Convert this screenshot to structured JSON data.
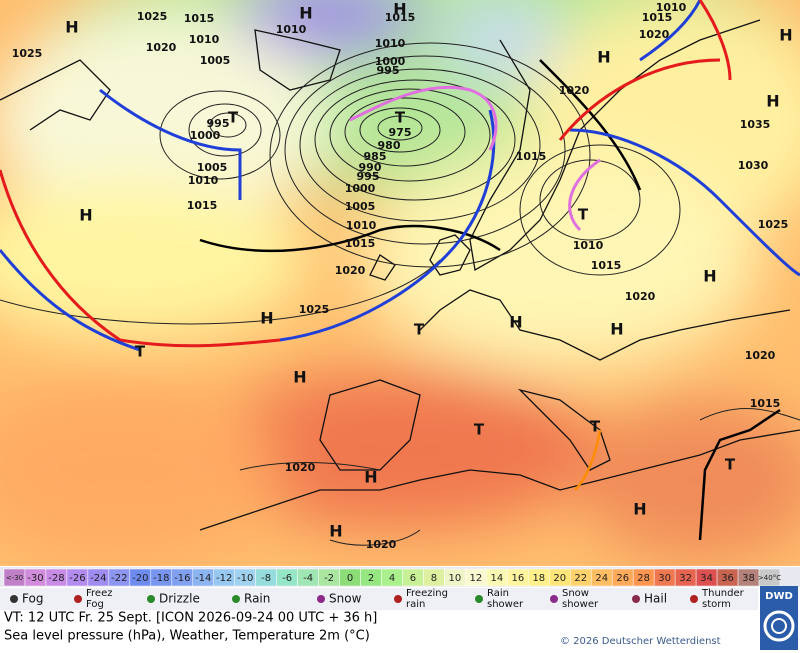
{
  "map": {
    "labels": [
      "H",
      "H",
      "H",
      "H",
      "H",
      "H",
      "H",
      "H",
      "H",
      "H",
      "H",
      "H",
      "H",
      "H",
      "H",
      "T",
      "T",
      "T",
      "T",
      "T",
      "T",
      "T",
      "T",
      "1025",
      "1015",
      "1010",
      "1015",
      "1020",
      "1010",
      "1005",
      "1025",
      "995",
      "1000",
      "1005",
      "1010",
      "1015",
      "975",
      "980",
      "985",
      "990",
      "995",
      "1000",
      "1005",
      "1010",
      "1015",
      "1020",
      "1025",
      "1010",
      "1000",
      "995",
      "1010",
      "1015",
      "1020",
      "1020",
      "1035",
      "1030",
      "1025",
      "1015",
      "1010",
      "1015",
      "1020",
      "1020",
      "1015",
      "1020",
      "1020"
    ]
  },
  "scale": {
    "below": "<-30",
    "values": [
      -30,
      -28,
      -26,
      -24,
      -22,
      -20,
      -18,
      -16,
      -14,
      -12,
      -10,
      -8,
      -6,
      -4,
      -2,
      0,
      2,
      4,
      6,
      8,
      10,
      12,
      14,
      16,
      18,
      20,
      22,
      24,
      26,
      28,
      30,
      32,
      34,
      36,
      38
    ],
    "above": ">40°C",
    "colors": [
      "#c080c8",
      "#d28cdc",
      "#c88ce6",
      "#b48cf0",
      "#a08cf0",
      "#8c96f0",
      "#6e8cf0",
      "#7896f0",
      "#82a0f0",
      "#8cb4f0",
      "#96c8f0",
      "#a0d2f0",
      "#96dcdc",
      "#96e6c8",
      "#a0e6b4",
      "#aae6a0",
      "#8cdc78",
      "#96e682",
      "#aaf08c",
      "#c8f096",
      "#dcf0a0",
      "#f0f5c8",
      "#fafad2",
      "#fafab4",
      "#fff5a0",
      "#fff08c",
      "#ffe678",
      "#ffd26e",
      "#ffbe64",
      "#ffaa5a",
      "#ff9650",
      "#f07850",
      "#e66450",
      "#dc5050",
      "#c86450",
      "#b4827a",
      "#c8c8c8"
    ]
  },
  "legend": [
    [
      "Fog"
    ],
    [
      "Freez",
      "Fog"
    ],
    [
      "Drizzle"
    ],
    [
      "Rain"
    ],
    [
      "Snow"
    ],
    [
      "Freezing",
      "rain"
    ],
    [
      "Rain",
      "shower"
    ],
    [
      "Snow",
      "shower"
    ],
    [
      "Hail"
    ],
    [
      "Thunder",
      "storm"
    ]
  ],
  "footer": {
    "valid_time": "VT: 12 UTC Fr.  25 Sept. [ICON 2026-09-24  00 UTC + 36 h]",
    "subtitle": "Sea level pressure (hPa), Weather, Temperature 2m (°C)",
    "copyright": "© 2026 Deutscher Wetterdienst",
    "logo": "DWD"
  }
}
